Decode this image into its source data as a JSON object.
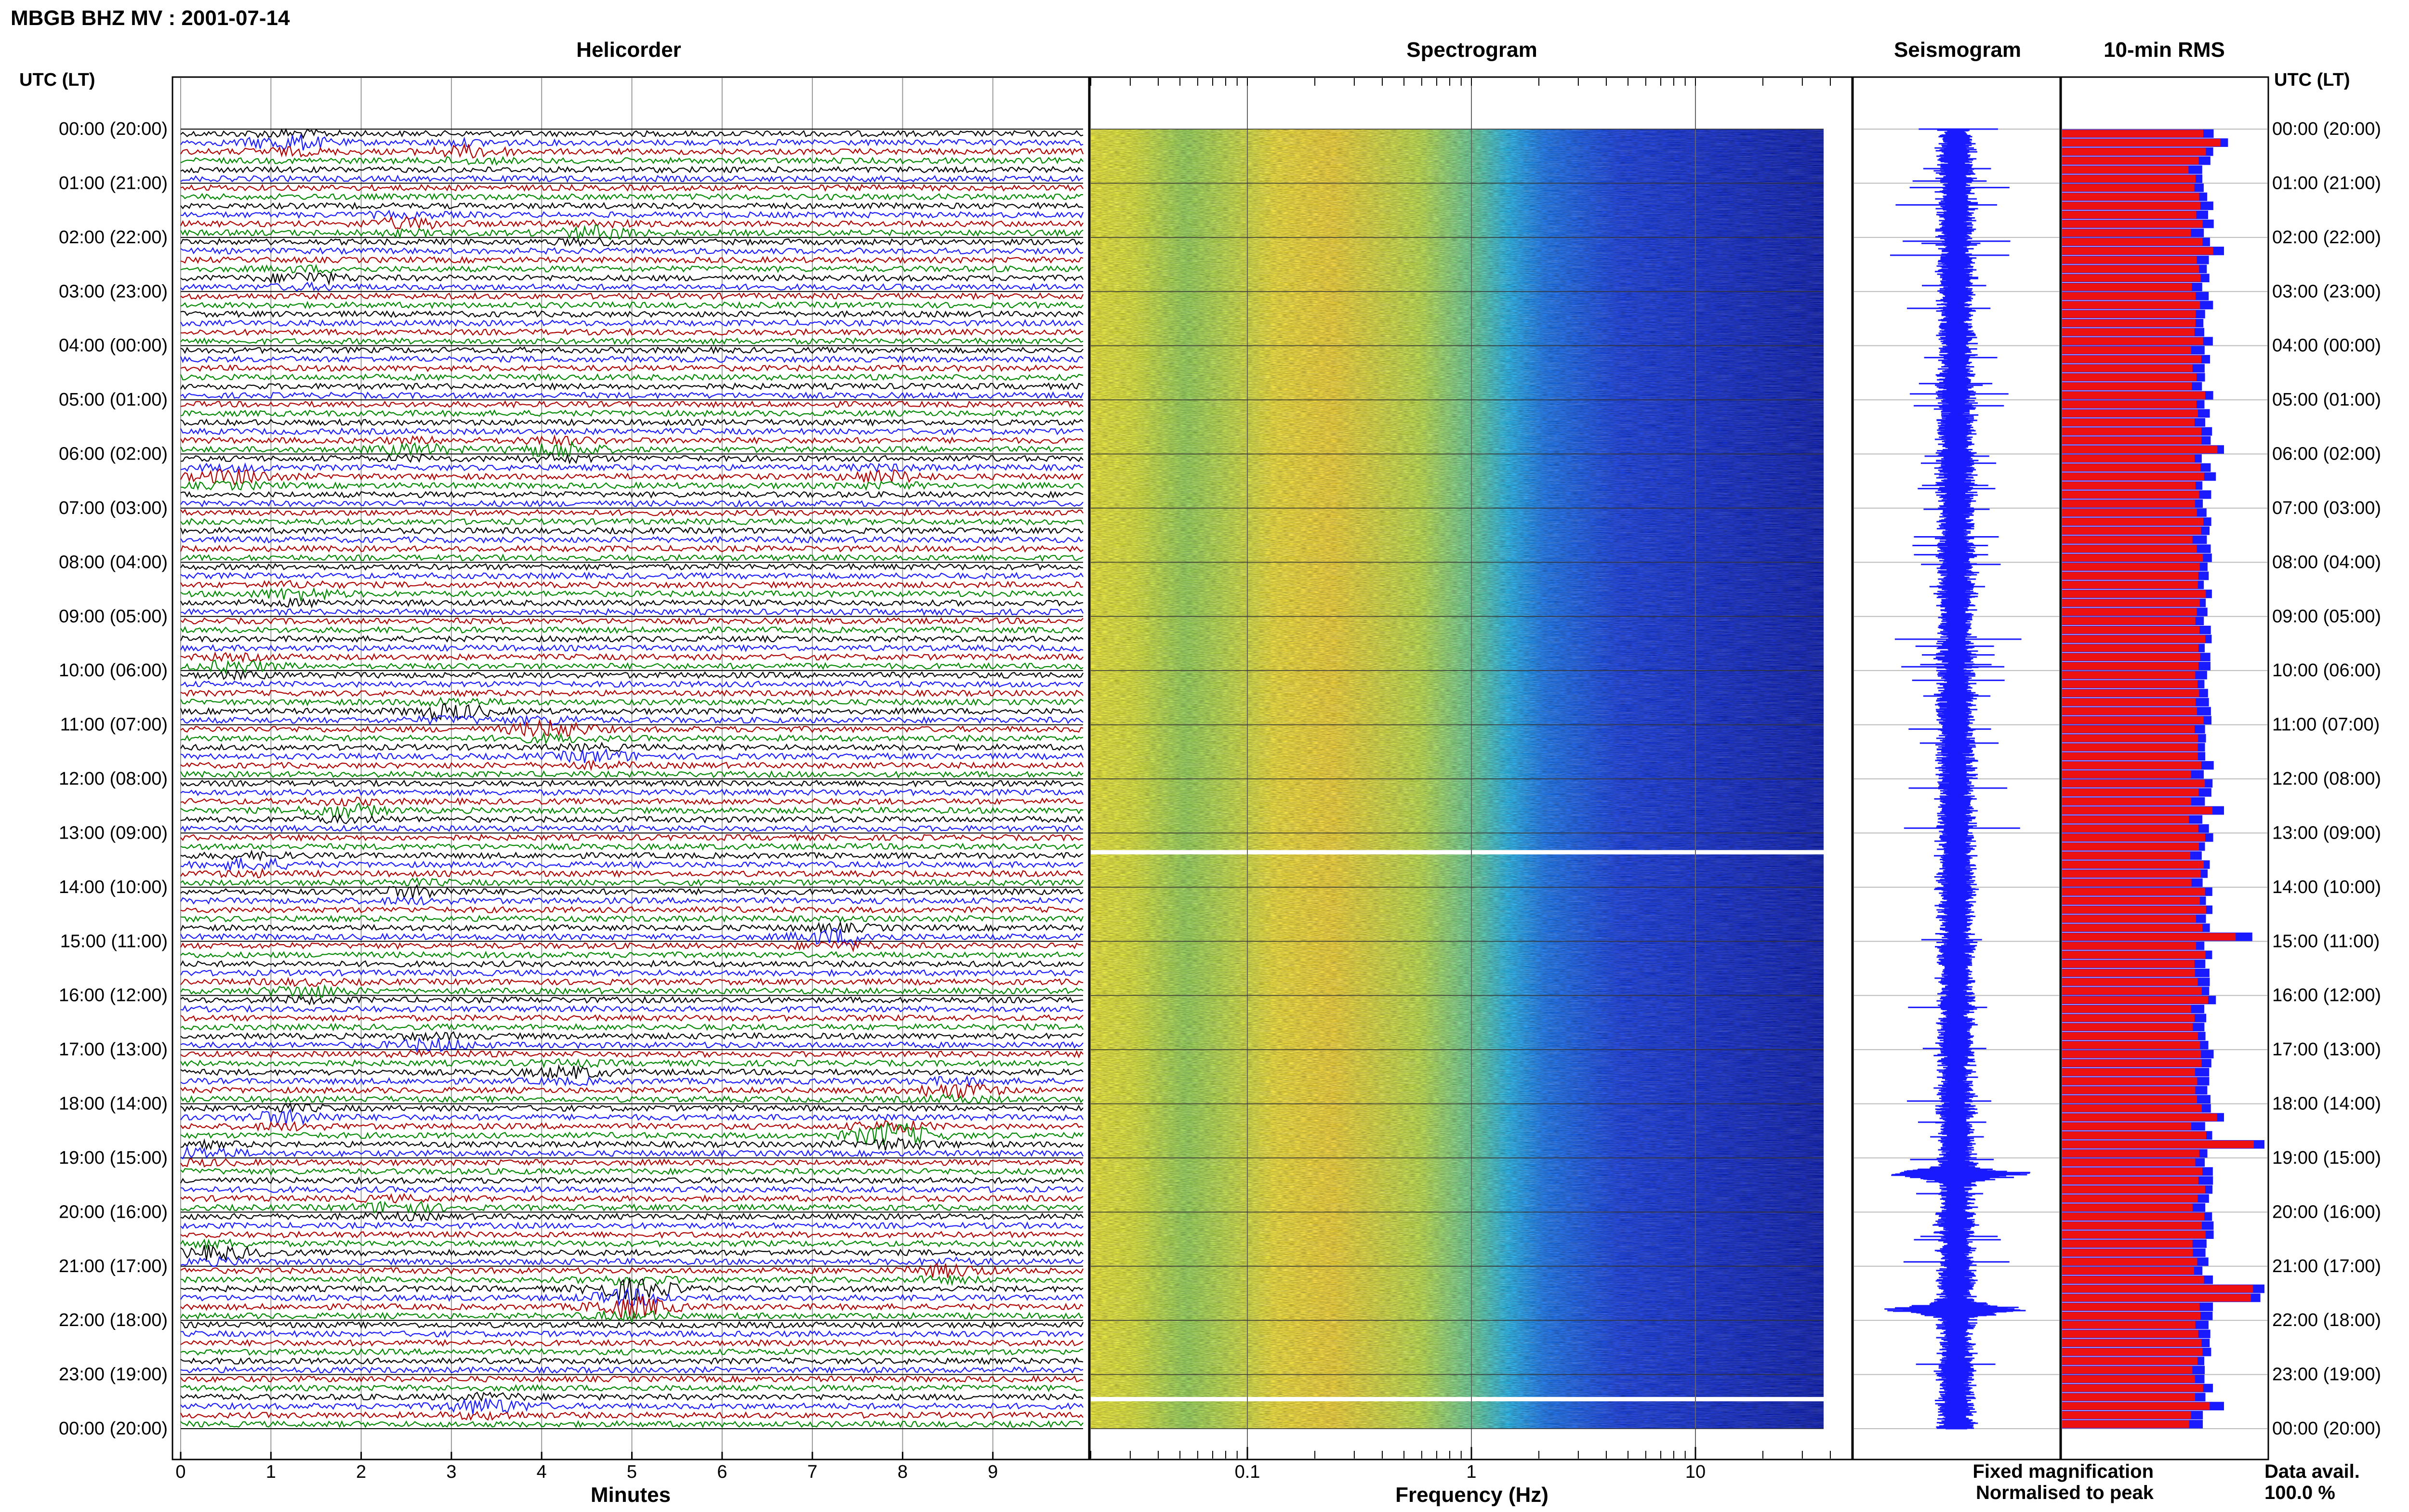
{
  "station_title": "MBGB BHZ MV : 2001-07-14",
  "utc_header": "UTC (LT)",
  "panels": {
    "helicorder": "Helicorder",
    "spectrogram": "Spectrogram",
    "seismogram": "Seismogram",
    "rms": "10-min RMS"
  },
  "legend": {
    "fixed": "Fixed magnification",
    "normalised": "Normalised to peak",
    "fixed_color": "#1a1aff",
    "normalised_color": "#ee1111"
  },
  "data_availability": {
    "label": "Data avail.",
    "value": "100.0 %"
  },
  "colors": {
    "trace_colors": [
      "#000000",
      "#1a1aff",
      "#b00000",
      "#008800"
    ],
    "rms_fixed": "#1a1aff",
    "rms_normalised": "#ee1111"
  },
  "chart_data": [
    {
      "type": "line",
      "title": "Helicorder",
      "xlabel": "Minutes",
      "x_ticks": [
        "0",
        "1",
        "2",
        "3",
        "4",
        "5",
        "6",
        "7",
        "8",
        "9"
      ],
      "xlim": [
        0,
        10
      ],
      "time_labels": [
        "00:00 (20:00)",
        "01:00 (21:00)",
        "02:00 (22:00)",
        "03:00 (23:00)",
        "04:00 (00:00)",
        "05:00 (01:00)",
        "06:00 (02:00)",
        "07:00 (03:00)",
        "08:00 (04:00)",
        "09:00 (05:00)",
        "10:00 (06:00)",
        "11:00 (07:00)",
        "12:00 (08:00)",
        "13:00 (09:00)",
        "14:00 (10:00)",
        "15:00 (11:00)",
        "16:00 (12:00)",
        "17:00 (13:00)",
        "18:00 (14:00)",
        "19:00 (15:00)",
        "20:00 (16:00)",
        "21:00 (17:00)",
        "22:00 (18:00)",
        "23:00 (19:00)",
        "00:00 (20:00)"
      ],
      "rows": 144,
      "events": [
        {
          "hour": 0.2,
          "minute": 1.2,
          "color": 1,
          "amp": 2.2
        },
        {
          "hour": 0.4,
          "minute": 3.2,
          "color": 3,
          "amp": 1.6
        },
        {
          "hour": 1.7,
          "minute": 2.5,
          "color": 3,
          "amp": 1.5
        },
        {
          "hour": 1.8,
          "minute": 4.6,
          "color": 3,
          "amp": 1.8
        },
        {
          "hour": 2.7,
          "minute": 1.4,
          "color": 0,
          "amp": 1.5
        },
        {
          "hour": 5.9,
          "minute": 4.2,
          "color": 3,
          "amp": 2.2
        },
        {
          "hour": 5.9,
          "minute": 2.6,
          "color": 0,
          "amp": 1.4
        },
        {
          "hour": 6.4,
          "minute": 0.6,
          "color": 3,
          "amp": 2.0
        },
        {
          "hour": 6.4,
          "minute": 7.8,
          "color": 3,
          "amp": 1.6
        },
        {
          "hour": 8.5,
          "minute": 1.3,
          "color": 3,
          "amp": 1.6
        },
        {
          "hour": 9.9,
          "minute": 0.6,
          "color": 3,
          "amp": 1.5
        },
        {
          "hour": 10.6,
          "minute": 3.0,
          "color": 0,
          "amp": 2.2
        },
        {
          "hour": 11.0,
          "minute": 4.1,
          "color": 0,
          "amp": 2.4
        },
        {
          "hour": 11.5,
          "minute": 4.6,
          "color": 3,
          "amp": 1.6
        },
        {
          "hour": 12.5,
          "minute": 1.8,
          "color": 3,
          "amp": 1.8
        },
        {
          "hour": 13.5,
          "minute": 0.8,
          "color": 2,
          "amp": 1.5
        },
        {
          "hour": 14.0,
          "minute": 2.6,
          "color": 2,
          "amp": 1.5
        },
        {
          "hour": 14.8,
          "minute": 7.3,
          "color": 2,
          "amp": 2.4
        },
        {
          "hour": 15.9,
          "minute": 1.4,
          "color": 0,
          "amp": 1.6
        },
        {
          "hour": 16.9,
          "minute": 2.8,
          "color": 1,
          "amp": 1.6
        },
        {
          "hour": 17.3,
          "minute": 4.3,
          "color": 3,
          "amp": 1.5
        },
        {
          "hour": 17.6,
          "minute": 8.6,
          "color": 3,
          "amp": 2.0
        },
        {
          "hour": 18.1,
          "minute": 1.2,
          "color": 2,
          "amp": 2.0
        },
        {
          "hour": 18.5,
          "minute": 7.9,
          "color": 3,
          "amp": 3.6
        },
        {
          "hour": 18.9,
          "minute": 0.2,
          "color": 0,
          "amp": 1.6
        },
        {
          "hour": 19.8,
          "minute": 2.4,
          "color": 3,
          "amp": 1.6
        },
        {
          "hour": 20.7,
          "minute": 0.4,
          "color": 0,
          "amp": 1.8
        },
        {
          "hour": 21.0,
          "minute": 8.5,
          "color": 1,
          "amp": 1.6
        },
        {
          "hour": 21.4,
          "minute": 5.0,
          "color": 2,
          "amp": 3.2
        },
        {
          "hour": 21.6,
          "minute": 5.0,
          "color": 1,
          "amp": 3.2
        },
        {
          "hour": 23.5,
          "minute": 3.4,
          "color": 2,
          "amp": 2.2
        }
      ]
    },
    {
      "type": "heatmap",
      "title": "Spectrogram",
      "xlabel": "Frequency (Hz)",
      "x_scale": "log",
      "xlim": [
        0.02,
        50
      ],
      "x_ticks": [
        "0.1",
        "1",
        "10"
      ],
      "x_tick_values": [
        0.1,
        1,
        10
      ],
      "data_gaps_hours": [
        13.35,
        23.45
      ]
    },
    {
      "type": "line",
      "title": "Seismogram",
      "series_color": "#1a1aff",
      "bursts_hours": [
        19.3,
        21.8
      ]
    },
    {
      "type": "bar",
      "title": "10-min RMS",
      "bins": 144,
      "fixed_color": "#1a1aff",
      "normalised_color": "#ee1111",
      "fixed_level": 0.72,
      "spikes": [
        {
          "bin": 1,
          "value": 0.82
        },
        {
          "bin": 13,
          "value": 0.8
        },
        {
          "bin": 35,
          "value": 0.8
        },
        {
          "bin": 38,
          "value": 0.76
        },
        {
          "bin": 47,
          "value": 0.74
        },
        {
          "bin": 75,
          "value": 0.8
        },
        {
          "bin": 89,
          "value": 0.94
        },
        {
          "bin": 96,
          "value": 0.76
        },
        {
          "bin": 109,
          "value": 0.8
        },
        {
          "bin": 112,
          "value": 1.0
        },
        {
          "bin": 128,
          "value": 1.0
        },
        {
          "bin": 129,
          "value": 0.98
        },
        {
          "bin": 141,
          "value": 0.8
        }
      ]
    }
  ]
}
